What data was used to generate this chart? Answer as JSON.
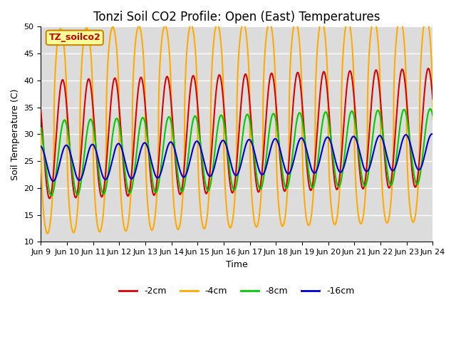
{
  "title": "Tonzi Soil CO2 Profile: Open (East) Temperatures",
  "xlabel": "Time",
  "ylabel": "Soil Temperature (C)",
  "ylim": [
    10,
    50
  ],
  "x_tick_labels": [
    "Jun 9",
    "Jun 10",
    "Jun 11",
    "Jun 12",
    "Jun 13",
    "Jun 14",
    "Jun 15",
    "Jun 16",
    "Jun 17",
    "Jun 18",
    "Jun 19",
    "Jun 20",
    "Jun 21",
    "Jun 22",
    "Jun 23",
    "Jun 24"
  ],
  "label_box_text": "TZ_soilco2",
  "label_box_facecolor": "#ffff99",
  "label_box_edgecolor": "#cc8800",
  "label_box_textcolor": "#cc0000",
  "series": [
    {
      "label": "-2cm",
      "color": "#dd0000"
    },
    {
      "label": "-4cm",
      "color": "#ffaa00"
    },
    {
      "label": "-8cm",
      "color": "#00cc00"
    },
    {
      "label": "-16cm",
      "color": "#0000cc"
    }
  ],
  "bg_color": "#dcdcdc",
  "fig_facecolor": "#ffffff",
  "grid_color": "#ffffff",
  "title_fontsize": 12,
  "tick_fontsize": 8,
  "linewidth": 1.5
}
